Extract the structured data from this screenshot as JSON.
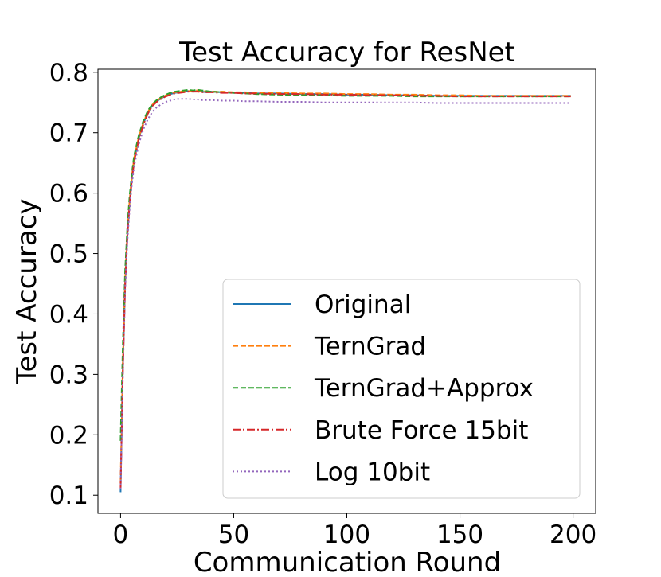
{
  "chart_data": {
    "type": "line",
    "title": "Test Accuracy for ResNet",
    "xlabel": "Communication Round",
    "ylabel": "Test Accuracy",
    "xlim": [
      -10,
      210
    ],
    "ylim": [
      0.07,
      0.805
    ],
    "xticks": [
      0,
      50,
      100,
      150,
      200
    ],
    "xtick_labels": [
      "0",
      "50",
      "100",
      "150",
      "200"
    ],
    "yticks": [
      0.1,
      0.2,
      0.3,
      0.4,
      0.5,
      0.6,
      0.7,
      0.8
    ],
    "ytick_labels": [
      "0.1",
      "0.2",
      "0.3",
      "0.4",
      "0.5",
      "0.6",
      "0.7",
      "0.8"
    ],
    "grid": false,
    "legend_position": "lower-right",
    "x": [
      0,
      1,
      2,
      3,
      4,
      5,
      6,
      8,
      10,
      12,
      14,
      16,
      18,
      20,
      22,
      24,
      26,
      28,
      30,
      32,
      34,
      36,
      38,
      40,
      45,
      50,
      55,
      60,
      70,
      80,
      90,
      100,
      110,
      120,
      130,
      140,
      150,
      160,
      170,
      180,
      190,
      199
    ],
    "series": [
      {
        "name": "Original",
        "color": "#1f77b4",
        "dash": "solid",
        "values": [
          0.105,
          0.31,
          0.45,
          0.53,
          0.585,
          0.625,
          0.655,
          0.69,
          0.715,
          0.733,
          0.745,
          0.752,
          0.757,
          0.761,
          0.764,
          0.766,
          0.767,
          0.768,
          0.769,
          0.768,
          0.769,
          0.768,
          0.767,
          0.768,
          0.767,
          0.766,
          0.766,
          0.765,
          0.765,
          0.764,
          0.764,
          0.763,
          0.763,
          0.762,
          0.762,
          0.761,
          0.761,
          0.761,
          0.761,
          0.761,
          0.761,
          0.761
        ]
      },
      {
        "name": "TernGrad",
        "color": "#ff7f0e",
        "dash": "dashed",
        "values": [
          0.12,
          0.32,
          0.455,
          0.535,
          0.588,
          0.628,
          0.658,
          0.692,
          0.716,
          0.734,
          0.746,
          0.753,
          0.758,
          0.762,
          0.765,
          0.767,
          0.768,
          0.769,
          0.769,
          0.769,
          0.77,
          0.769,
          0.768,
          0.768,
          0.768,
          0.767,
          0.767,
          0.766,
          0.766,
          0.765,
          0.765,
          0.764,
          0.764,
          0.763,
          0.763,
          0.762,
          0.762,
          0.761,
          0.761,
          0.761,
          0.761,
          0.761
        ]
      },
      {
        "name": "TernGrad+Approx",
        "color": "#2ca02c",
        "dash": "dashed",
        "values": [
          0.19,
          0.35,
          0.47,
          0.545,
          0.595,
          0.633,
          0.662,
          0.695,
          0.719,
          0.736,
          0.747,
          0.754,
          0.759,
          0.763,
          0.766,
          0.768,
          0.769,
          0.77,
          0.771,
          0.77,
          0.771,
          0.77,
          0.769,
          0.768,
          0.767,
          0.766,
          0.765,
          0.764,
          0.763,
          0.762,
          0.762,
          0.761,
          0.761,
          0.761,
          0.76,
          0.76,
          0.76,
          0.76,
          0.76,
          0.76,
          0.76,
          0.76
        ]
      },
      {
        "name": "Brute Force 15bit",
        "color": "#d62728",
        "dash": "dashdot",
        "values": [
          0.11,
          0.3,
          0.445,
          0.528,
          0.582,
          0.622,
          0.652,
          0.688,
          0.713,
          0.731,
          0.744,
          0.751,
          0.756,
          0.76,
          0.763,
          0.765,
          0.766,
          0.767,
          0.768,
          0.768,
          0.768,
          0.767,
          0.767,
          0.767,
          0.766,
          0.766,
          0.765,
          0.765,
          0.764,
          0.764,
          0.763,
          0.763,
          0.762,
          0.762,
          0.761,
          0.761,
          0.76,
          0.76,
          0.76,
          0.76,
          0.76,
          0.76
        ]
      },
      {
        "name": "Log 10bit",
        "color": "#9467bd",
        "dash": "dotted",
        "values": [
          0.11,
          0.3,
          0.44,
          0.52,
          0.575,
          0.615,
          0.645,
          0.68,
          0.705,
          0.722,
          0.734,
          0.742,
          0.747,
          0.751,
          0.753,
          0.755,
          0.756,
          0.756,
          0.756,
          0.755,
          0.755,
          0.754,
          0.754,
          0.754,
          0.753,
          0.753,
          0.752,
          0.752,
          0.751,
          0.751,
          0.75,
          0.75,
          0.75,
          0.75,
          0.75,
          0.749,
          0.749,
          0.749,
          0.749,
          0.749,
          0.749,
          0.749
        ]
      }
    ]
  }
}
